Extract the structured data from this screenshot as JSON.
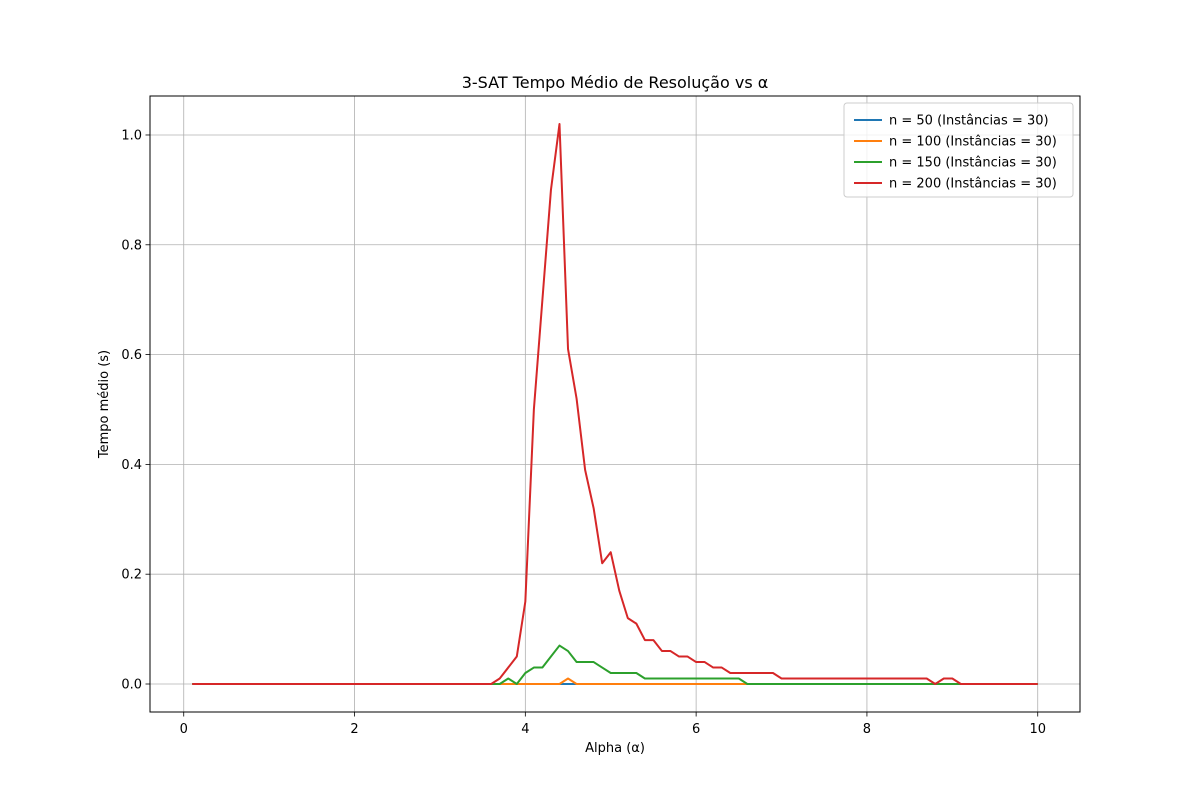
{
  "chart_data": {
    "type": "line",
    "title": "3-SAT Tempo Médio de Resolução vs α",
    "xlabel": "Alpha (α)",
    "ylabel": "Tempo médio (s)",
    "xlim": [
      -0.395,
      10.495
    ],
    "ylim": [
      -0.051,
      1.071
    ],
    "xticks": [
      0,
      2,
      4,
      6,
      8,
      10
    ],
    "xtick_labels": [
      "0",
      "2",
      "4",
      "6",
      "8",
      "10"
    ],
    "yticks": [
      0.0,
      0.2,
      0.4,
      0.6,
      0.8,
      1.0
    ],
    "ytick_labels": [
      "0.0",
      "0.2",
      "0.4",
      "0.6",
      "0.8",
      "1.0"
    ],
    "grid": true,
    "legend_position": "top-right",
    "series": [
      {
        "name": "n = 50 (Instâncias = 30)",
        "color": "#1f77b4",
        "x": [
          0.1,
          4.4,
          4.5,
          4.6,
          10.0
        ],
        "y": [
          0,
          0,
          0,
          0,
          0
        ]
      },
      {
        "name": "n = 100 (Instâncias = 30)",
        "color": "#ff7f0e",
        "x": [
          0.1,
          4.4,
          4.5,
          4.6,
          10.0
        ],
        "y": [
          0,
          0,
          0.01,
          0,
          0
        ]
      },
      {
        "name": "n = 150 (Instâncias = 30)",
        "color": "#2ca02c",
        "x": [
          0.1,
          3.7,
          3.8,
          3.9,
          4.0,
          4.1,
          4.2,
          4.3,
          4.4,
          4.5,
          4.6,
          4.7,
          4.8,
          4.9,
          5.0,
          5.1,
          5.2,
          5.3,
          5.4,
          5.5,
          6.0,
          6.5,
          6.6,
          10.0
        ],
        "y": [
          0,
          0,
          0.01,
          0,
          0.02,
          0.03,
          0.03,
          0.05,
          0.07,
          0.06,
          0.04,
          0.04,
          0.04,
          0.03,
          0.02,
          0.02,
          0.02,
          0.02,
          0.01,
          0.01,
          0.01,
          0.01,
          0,
          0
        ]
      },
      {
        "name": "n = 200 (Instâncias = 30)",
        "color": "#d62728",
        "x": [
          0.1,
          3.6,
          3.7,
          3.8,
          3.9,
          4.0,
          4.1,
          4.2,
          4.3,
          4.4,
          4.5,
          4.6,
          4.7,
          4.8,
          4.9,
          5.0,
          5.1,
          5.2,
          5.3,
          5.4,
          5.5,
          5.6,
          5.7,
          5.8,
          5.9,
          6.0,
          6.1,
          6.2,
          6.3,
          6.4,
          6.5,
          6.6,
          6.7,
          6.8,
          6.9,
          7.0,
          7.5,
          8.0,
          8.5,
          8.7,
          8.8,
          8.9,
          9.0,
          9.1,
          9.5,
          10.0
        ],
        "y": [
          0,
          0,
          0.01,
          0.03,
          0.05,
          0.15,
          0.5,
          0.7,
          0.9,
          1.02,
          0.61,
          0.52,
          0.39,
          0.32,
          0.22,
          0.24,
          0.17,
          0.12,
          0.11,
          0.08,
          0.08,
          0.06,
          0.06,
          0.05,
          0.05,
          0.04,
          0.04,
          0.03,
          0.03,
          0.02,
          0.02,
          0.02,
          0.02,
          0.02,
          0.02,
          0.01,
          0.01,
          0.01,
          0.01,
          0.01,
          0,
          0.01,
          0.01,
          0,
          0,
          0
        ]
      }
    ]
  }
}
